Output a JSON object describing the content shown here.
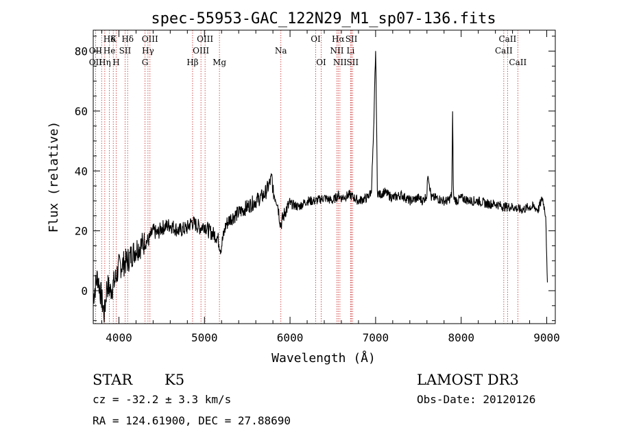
{
  "chart_data": {
    "type": "line",
    "title": "spec-55953-GAC_122N29_M1_sp07-136.fits",
    "xlabel": "Wavelength (Å)",
    "ylabel": "Flux (relative)",
    "xlim": [
      3700,
      9100
    ],
    "ylim": [
      -11,
      87
    ],
    "xticks": [
      4000,
      5000,
      6000,
      7000,
      8000,
      9000
    ],
    "yticks": [
      0,
      20,
      40,
      60,
      80
    ],
    "grid": false,
    "series": [
      {
        "name": "spectrum",
        "x": [
          3700,
          3750,
          3800,
          3830,
          3860,
          3900,
          3950,
          4000,
          4050,
          4100,
          4150,
          4200,
          4250,
          4300,
          4350,
          4400,
          4450,
          4500,
          4600,
          4700,
          4800,
          4850,
          4900,
          4950,
          5000,
          5050,
          5100,
          5150,
          5190,
          5250,
          5300,
          5400,
          5500,
          5600,
          5700,
          5750,
          5790,
          5800,
          5850,
          5890,
          5950,
          6000,
          6100,
          6200,
          6300,
          6400,
          6500,
          6563,
          6600,
          6700,
          6800,
          6900,
          6950,
          6980,
          6990,
          7000,
          7010,
          7020,
          7050,
          7100,
          7200,
          7300,
          7400,
          7500,
          7550,
          7600,
          7610,
          7650,
          7700,
          7800,
          7850,
          7890,
          7900,
          7910,
          7950,
          8000,
          8100,
          8200,
          8300,
          8400,
          8500,
          8600,
          8700,
          8800,
          8850,
          8900,
          8950,
          8990,
          9000,
          9010
        ],
        "y": [
          -2,
          5,
          -3,
          -8,
          2,
          0,
          3,
          8,
          9,
          10,
          12,
          14,
          15,
          16,
          17,
          20,
          19,
          21,
          22,
          20,
          21,
          23,
          22,
          21,
          22,
          20,
          19,
          18,
          14,
          22,
          24,
          26,
          28,
          30,
          32,
          35,
          38,
          33,
          30,
          22,
          27,
          29,
          28,
          30,
          30,
          31,
          30,
          32,
          31,
          32,
          30,
          31,
          33,
          55,
          70,
          80,
          60,
          33,
          32,
          33,
          31,
          32,
          30,
          31,
          30,
          32,
          40,
          31,
          31,
          30,
          30,
          32,
          59,
          31,
          30,
          31,
          30,
          30,
          29,
          29,
          28,
          28,
          27,
          28,
          28,
          27,
          31,
          25,
          10,
          -1
        ]
      }
    ],
    "line_labels": [
      {
        "text": "Hδ",
        "wl": 3889,
        "row": 1
      },
      {
        "text": "K",
        "wl": 3934,
        "row": 1
      },
      {
        "text": "Hδ",
        "wl": 4102,
        "row": 1
      },
      {
        "text": "OIII",
        "wl": 4363,
        "row": 1
      },
      {
        "text": "OIII",
        "wl": 5007,
        "row": 1
      },
      {
        "text": "OI",
        "wl": 6300,
        "row": 1
      },
      {
        "text": "Hα",
        "wl": 6563,
        "row": 1
      },
      {
        "text": "SII",
        "wl": 6717,
        "row": 1
      },
      {
        "text": "CaII",
        "wl": 8542,
        "row": 1
      },
      {
        "text": "OII",
        "wl": 3727,
        "row": 2
      },
      {
        "text": "He",
        "wl": 3889,
        "row": 2
      },
      {
        "text": "SII",
        "wl": 4072,
        "row": 2
      },
      {
        "text": "Hγ",
        "wl": 4340,
        "row": 2
      },
      {
        "text": "OIII",
        "wl": 4959,
        "row": 2
      },
      {
        "text": "Na",
        "wl": 5893,
        "row": 2
      },
      {
        "text": "NII",
        "wl": 6548,
        "row": 2
      },
      {
        "text": "Li",
        "wl": 6708,
        "row": 2
      },
      {
        "text": "CaII",
        "wl": 8498,
        "row": 2
      },
      {
        "text": "OII",
        "wl": 3727,
        "row": 3
      },
      {
        "text": "Hη",
        "wl": 3835,
        "row": 3
      },
      {
        "text": "H",
        "wl": 3968,
        "row": 3
      },
      {
        "text": "G",
        "wl": 4305,
        "row": 3
      },
      {
        "text": "Hβ",
        "wl": 4861,
        "row": 3
      },
      {
        "text": "Mg",
        "wl": 5175,
        "row": 3
      },
      {
        "text": "OI",
        "wl": 6364,
        "row": 3
      },
      {
        "text": "NII",
        "wl": 6583,
        "row": 3
      },
      {
        "text": "SII",
        "wl": 6731,
        "row": 3
      },
      {
        "text": "CaII",
        "wl": 8662,
        "row": 3
      }
    ],
    "line_marks": [
      3727,
      3798,
      3835,
      3889,
      3934,
      3968,
      4072,
      4102,
      4305,
      4340,
      4363,
      4861,
      4959,
      5007,
      5175,
      5893,
      6300,
      6364,
      6548,
      6563,
      6583,
      6708,
      6717,
      6731,
      8498,
      8542,
      8662
    ]
  },
  "info": {
    "class": "STAR",
    "subclass": "K5",
    "survey": "LAMOST DR3",
    "cz": "cz = -32.2 ± 3.3 km/s",
    "obs_date": "Obs-Date: 20120126",
    "coords": "RA = 124.61900, DEC =  27.88690"
  },
  "colors": {
    "line": "#000000",
    "marker": "#cc2222"
  }
}
